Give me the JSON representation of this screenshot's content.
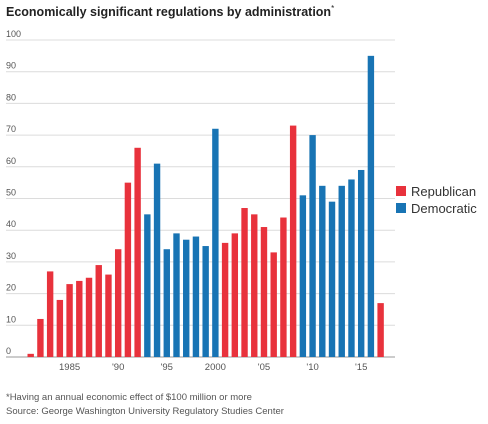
{
  "title": "Economically significant regulations by administration",
  "title_marker": "*",
  "footnote": "*Having an annual economic effect of $100 million or more",
  "source": "Source: George Washington University Regulatory Studies Center",
  "colors": {
    "Republican": "#e8323c",
    "Democratic": "#1874b4",
    "grid": "#dcdcdc",
    "axis_text": "#555555"
  },
  "chart_data": {
    "type": "bar",
    "title": "Economically significant regulations by administration",
    "xlabel": "",
    "ylabel": "",
    "ylim": [
      0,
      100
    ],
    "yticks": [
      0,
      10,
      20,
      30,
      40,
      50,
      60,
      70,
      80,
      90,
      100
    ],
    "x_tick_labels": [
      {
        "year": 1985,
        "label": "1985"
      },
      {
        "year": 1990,
        "label": "'90"
      },
      {
        "year": 1995,
        "label": "'95"
      },
      {
        "year": 2000,
        "label": "2000"
      },
      {
        "year": 2005,
        "label": "'05"
      },
      {
        "year": 2010,
        "label": "'10"
      },
      {
        "year": 2015,
        "label": "'15"
      }
    ],
    "grid": true,
    "legend_position": "right",
    "legend": [
      "Republican",
      "Democratic"
    ],
    "points": [
      {
        "year": 1981,
        "value": 1,
        "party": "Republican"
      },
      {
        "year": 1982,
        "value": 12,
        "party": "Republican"
      },
      {
        "year": 1983,
        "value": 27,
        "party": "Republican"
      },
      {
        "year": 1984,
        "value": 18,
        "party": "Republican"
      },
      {
        "year": 1985,
        "value": 23,
        "party": "Republican"
      },
      {
        "year": 1986,
        "value": 24,
        "party": "Republican"
      },
      {
        "year": 1987,
        "value": 25,
        "party": "Republican"
      },
      {
        "year": 1988,
        "value": 29,
        "party": "Republican"
      },
      {
        "year": 1989,
        "value": 26,
        "party": "Republican"
      },
      {
        "year": 1990,
        "value": 34,
        "party": "Republican"
      },
      {
        "year": 1991,
        "value": 55,
        "party": "Republican"
      },
      {
        "year": 1992,
        "value": 66,
        "party": "Republican"
      },
      {
        "year": 1993,
        "value": 45,
        "party": "Democratic"
      },
      {
        "year": 1994,
        "value": 61,
        "party": "Democratic"
      },
      {
        "year": 1995,
        "value": 34,
        "party": "Democratic"
      },
      {
        "year": 1996,
        "value": 39,
        "party": "Democratic"
      },
      {
        "year": 1997,
        "value": 37,
        "party": "Democratic"
      },
      {
        "year": 1998,
        "value": 38,
        "party": "Democratic"
      },
      {
        "year": 1999,
        "value": 35,
        "party": "Democratic"
      },
      {
        "year": 2000,
        "value": 72,
        "party": "Democratic"
      },
      {
        "year": 2001,
        "value": 36,
        "party": "Republican"
      },
      {
        "year": 2002,
        "value": 39,
        "party": "Republican"
      },
      {
        "year": 2003,
        "value": 47,
        "party": "Republican"
      },
      {
        "year": 2004,
        "value": 45,
        "party": "Republican"
      },
      {
        "year": 2005,
        "value": 41,
        "party": "Republican"
      },
      {
        "year": 2006,
        "value": 33,
        "party": "Republican"
      },
      {
        "year": 2007,
        "value": 44,
        "party": "Republican"
      },
      {
        "year": 2008,
        "value": 73,
        "party": "Republican"
      },
      {
        "year": 2009,
        "value": 51,
        "party": "Democratic"
      },
      {
        "year": 2010,
        "value": 70,
        "party": "Democratic"
      },
      {
        "year": 2011,
        "value": 54,
        "party": "Democratic"
      },
      {
        "year": 2012,
        "value": 49,
        "party": "Democratic"
      },
      {
        "year": 2013,
        "value": 54,
        "party": "Democratic"
      },
      {
        "year": 2014,
        "value": 56,
        "party": "Democratic"
      },
      {
        "year": 2015,
        "value": 59,
        "party": "Democratic"
      },
      {
        "year": 2016,
        "value": 95,
        "party": "Democratic"
      },
      {
        "year": 2017,
        "value": 17,
        "party": "Republican"
      }
    ]
  }
}
